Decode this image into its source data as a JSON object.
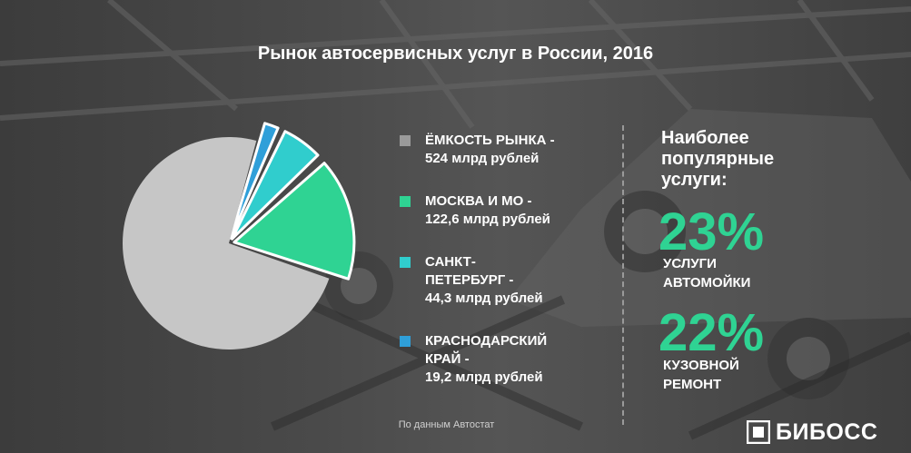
{
  "title": "Рынок автосервисных услуг в России, 2016",
  "chart_data": {
    "type": "pie",
    "title": "Рынок автосервисных услуг в России, 2016",
    "slices": [
      {
        "label": "ЁМКОСТЬ РЫНКА - 524 млрд рублей",
        "value": 524,
        "color": "#c6c6c6"
      },
      {
        "label": "МОСКВА И МО - 122,6 млрд рублей",
        "value": 122.6,
        "color": "#2fd393"
      },
      {
        "label": "САНКТ-ПЕТЕРБУРГ - 44,3 млрд рублей",
        "value": 44.3,
        "color": "#30cdcd"
      },
      {
        "label": "КРАСНОДАРСКИЙ КРАЙ - 19,2 млрд рублей",
        "value": 19.2,
        "color": "#2f9fd9"
      }
    ]
  },
  "legend": [
    {
      "text": "ЁМКОСТЬ РЫНКА -\n524 млрд рублей",
      "color": "#9a9a9a"
    },
    {
      "text": "МОСКВА И МО -\n122,6 млрд рублей",
      "color": "#2fd393"
    },
    {
      "text": "САНКТ-\nПЕТЕРБУРГ -\n44,3 млрд рублей",
      "color": "#30cdcd"
    },
    {
      "text": "КРАСНОДАРСКИЙ\nКРАЙ -\n19,2 млрд рублей",
      "color": "#2f9fd9"
    }
  ],
  "popular": {
    "heading": "Наиболее\nпопулярные\nуслуги:",
    "items": [
      {
        "value": "23%",
        "label": "УСЛУГИ\nАВТОМОЙКИ"
      },
      {
        "value": "22%",
        "label": "КУЗОВНОЙ\nРЕМОНТ"
      }
    ]
  },
  "source": "По данным Автостат",
  "logo": {
    "text": "БИБОСС"
  },
  "colors": {
    "accent": "#2fd393",
    "text": "#ffffff"
  }
}
